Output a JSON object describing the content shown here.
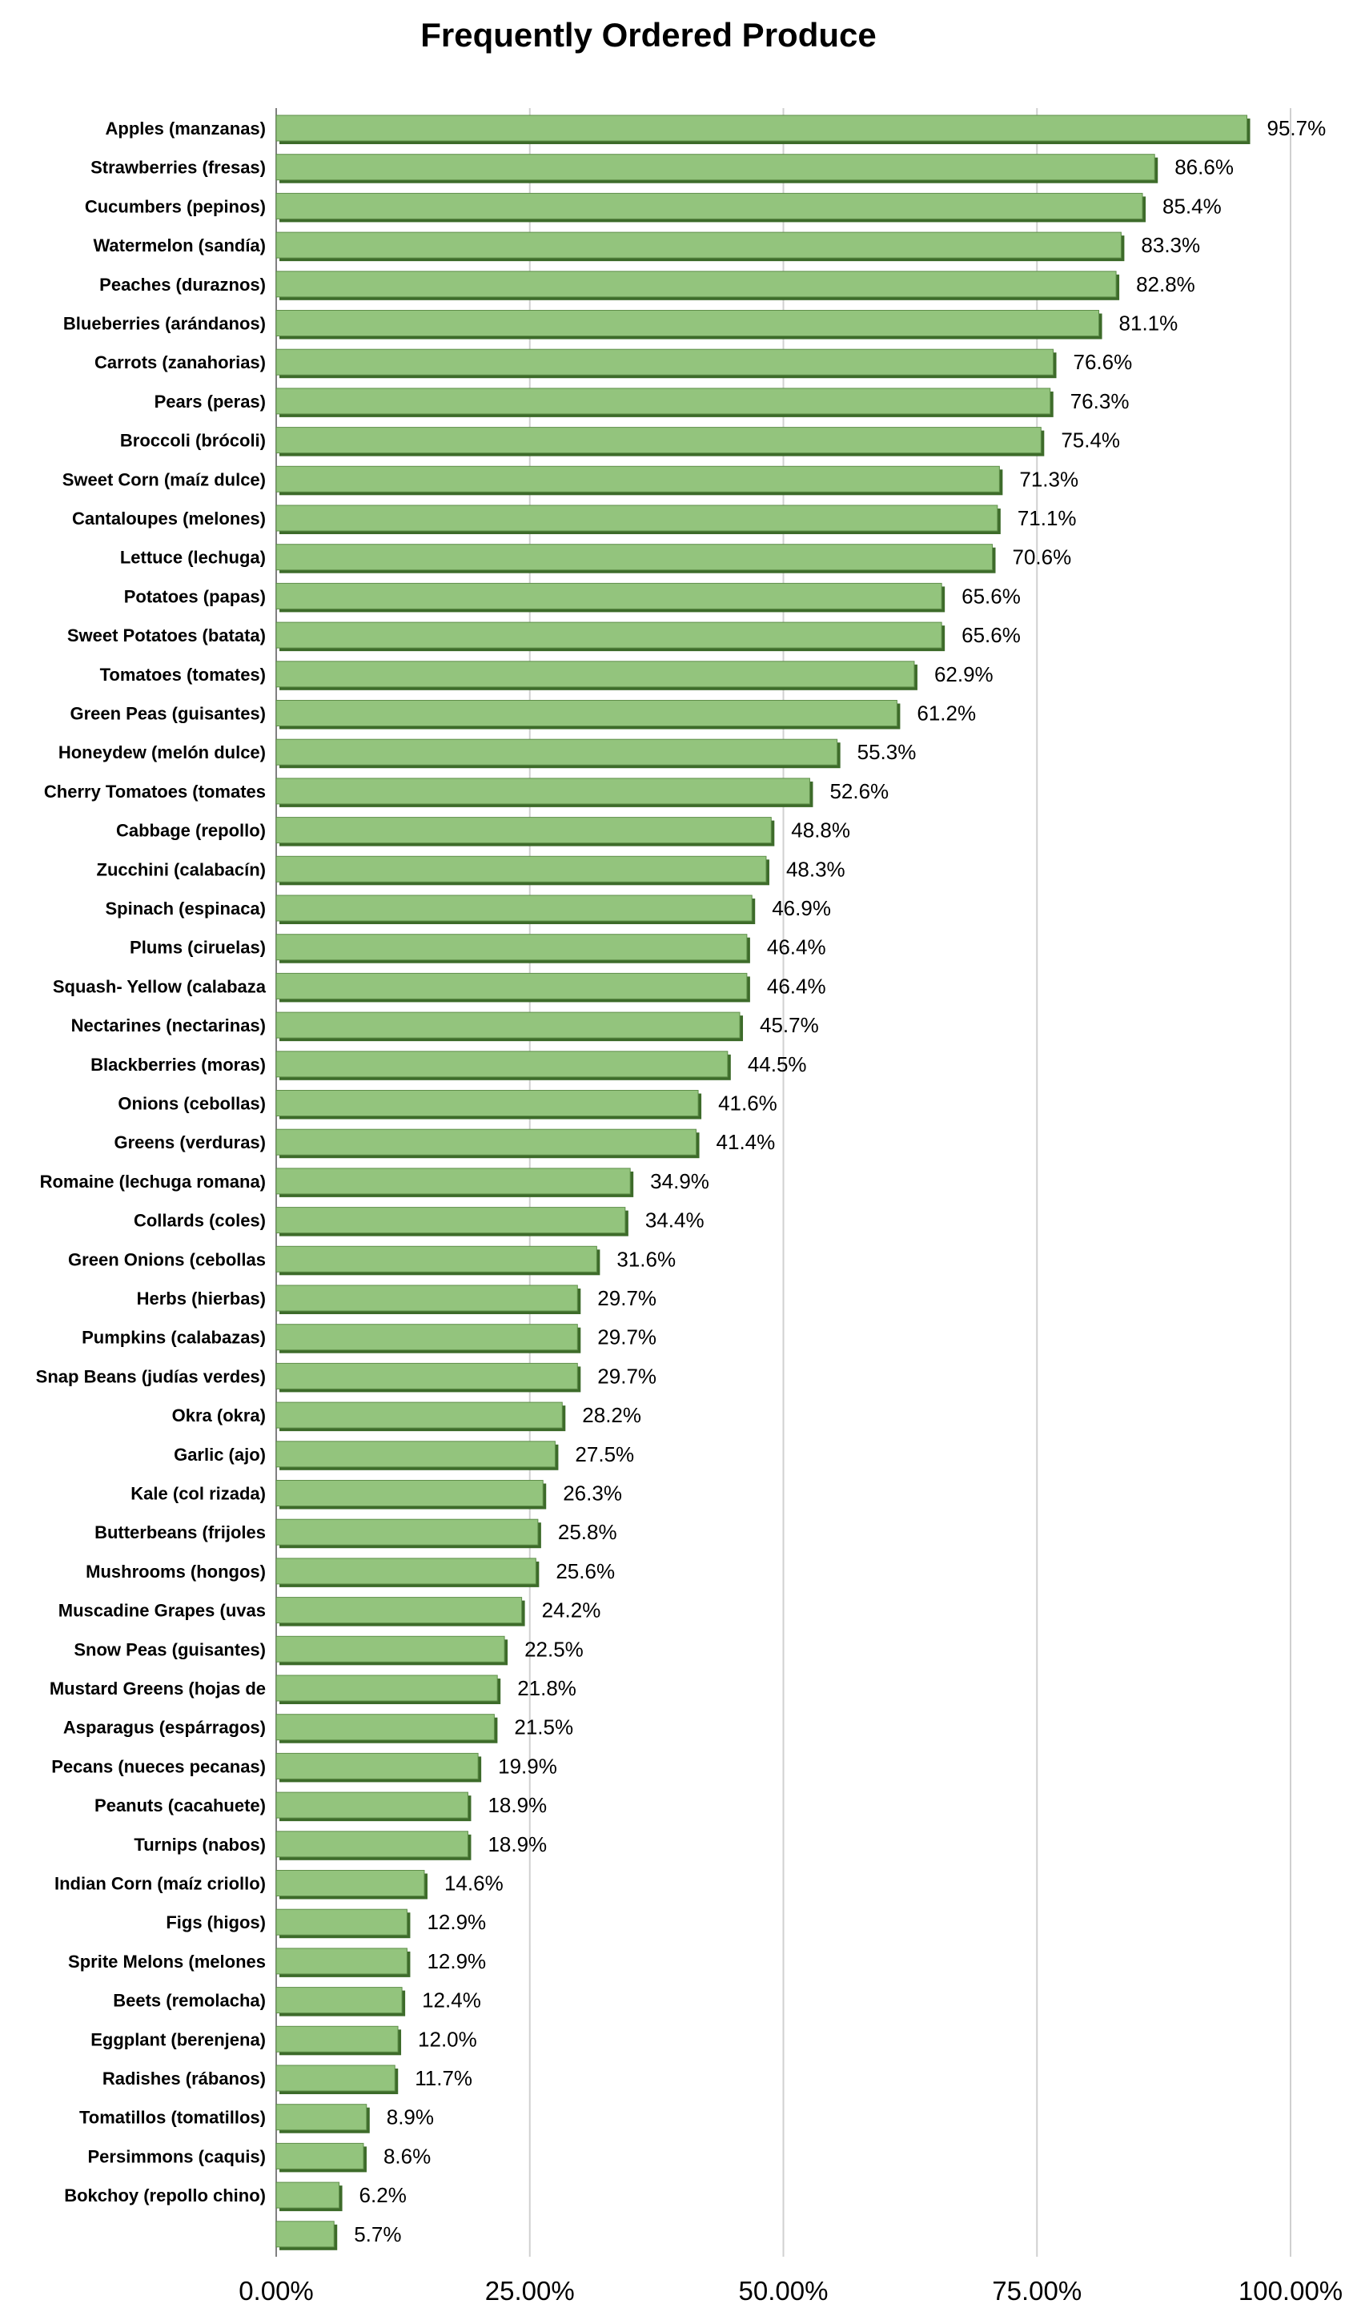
{
  "chart_data": {
    "type": "bar",
    "orientation": "horizontal",
    "title": "Frequently Ordered Produce",
    "xlabel": "",
    "ylabel": "",
    "xlim": [
      0,
      100
    ],
    "x_ticks": [
      "0.00%",
      "25.00%",
      "50.00%",
      "75.00%",
      "100.00%"
    ],
    "grid": "vertical",
    "legend": "none",
    "bar_color": "#93c47d",
    "bar_shadow_color": "#3d6b2a",
    "categories": [
      "Apples (manzanas)",
      "Strawberries (fresas)",
      "Cucumbers (pepinos)",
      "Watermelon (sandía)",
      "Peaches (duraznos)",
      "Blueberries (arándanos)",
      "Carrots (zanahorias)",
      "Pears (peras)",
      "Broccoli (brócoli)",
      "Sweet Corn (maíz dulce)",
      "Cantaloupes (melones)",
      "Lettuce (lechuga)",
      "Potatoes (papas)",
      "Sweet Potatoes (batata)",
      "Tomatoes (tomates)",
      "Green Peas (guisantes)",
      "Honeydew (melón dulce)",
      "Cherry Tomatoes (tomates",
      "Cabbage (repollo)",
      "Zucchini (calabacín)",
      "Spinach (espinaca)",
      "Plums (ciruelas)",
      "Squash- Yellow (calabaza",
      "Nectarines (nectarinas)",
      "Blackberries (moras)",
      "Onions (cebollas)",
      "Greens (verduras)",
      "Romaine (lechuga romana)",
      "Collards (coles)",
      "Green Onions (cebollas",
      "Herbs (hierbas)",
      "Pumpkins (calabazas)",
      "Snap Beans (judías verdes)",
      "Okra (okra)",
      "Garlic (ajo)",
      "Kale (col rizada)",
      "Butterbeans (frijoles",
      "Mushrooms (hongos)",
      "Muscadine Grapes (uvas",
      "Snow Peas (guisantes)",
      "Mustard Greens (hojas de",
      "Asparagus (espárragos)",
      "Pecans (nueces pecanas)",
      "Peanuts (cacahuete)",
      "Turnips (nabos)",
      "Indian Corn (maíz criollo)",
      "Figs (higos)",
      "Sprite Melons (melones",
      "Beets (remolacha)",
      "Eggplant (berenjena)",
      "Radishes (rábanos)",
      "Tomatillos (tomatillos)",
      "Persimmons (caquis)",
      "Bokchoy (repollo chino)",
      ""
    ],
    "values": [
      95.7,
      86.6,
      85.4,
      83.3,
      82.8,
      81.1,
      76.6,
      76.3,
      75.4,
      71.3,
      71.1,
      70.6,
      65.6,
      65.6,
      62.9,
      61.2,
      55.3,
      52.6,
      48.8,
      48.3,
      46.9,
      46.4,
      46.4,
      45.7,
      44.5,
      41.6,
      41.4,
      34.9,
      34.4,
      31.6,
      29.7,
      29.7,
      29.7,
      28.2,
      27.5,
      26.3,
      25.8,
      25.6,
      24.2,
      22.5,
      21.8,
      21.5,
      19.9,
      18.9,
      18.9,
      14.6,
      12.9,
      12.9,
      12.4,
      12.0,
      11.7,
      8.9,
      8.6,
      6.2,
      5.7
    ],
    "value_labels": [
      "95.7%",
      "86.6%",
      "85.4%",
      "83.3%",
      "82.8%",
      "81.1%",
      "76.6%",
      "76.3%",
      "75.4%",
      "71.3%",
      "71.1%",
      "70.6%",
      "65.6%",
      "65.6%",
      "62.9%",
      "61.2%",
      "55.3%",
      "52.6%",
      "48.8%",
      "48.3%",
      "46.9%",
      "46.4%",
      "46.4%",
      "45.7%",
      "44.5%",
      "41.6%",
      "41.4%",
      "34.9%",
      "34.4%",
      "31.6%",
      "29.7%",
      "29.7%",
      "29.7%",
      "28.2%",
      "27.5%",
      "26.3%",
      "25.8%",
      "25.6%",
      "24.2%",
      "22.5%",
      "21.8%",
      "21.5%",
      "19.9%",
      "18.9%",
      "18.9%",
      "14.6%",
      "12.9%",
      "12.9%",
      "12.4%",
      "12.0%",
      "11.7%",
      "8.9%",
      "8.6%",
      "6.2%",
      "5.7%"
    ]
  }
}
